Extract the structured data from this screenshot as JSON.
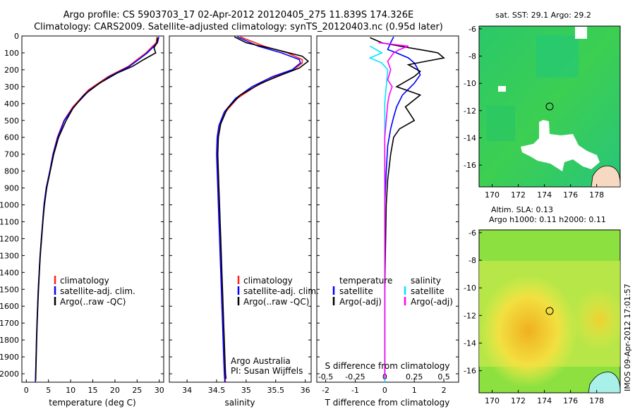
{
  "header": {
    "line1": "Argo profile: CS 5903703_17 02-Apr-2012 20120405_275 11.839S 174.326E",
    "line2": "Climatology: CARS2009. Satellite-adjusted climatology: synTS_20120403.nc (0.95d later)"
  },
  "credit": {
    "line1": "Argo Australia",
    "line2": "PI: Susan Wijffels"
  },
  "timestamp": "IMOS 09-Apr-2012 17:01:57",
  "colors": {
    "climatology": "#ff2020",
    "satellite": "#0000ff",
    "argo": "#000000",
    "sat_salinity": "#00e5ff",
    "argo_salinity": "#ff00ff"
  },
  "chart_data": [
    {
      "type": "line",
      "xlabel": "temperature (deg C)",
      "xlim": [
        -1,
        31
      ],
      "xticks": [
        "0",
        "5",
        "10",
        "15",
        "20",
        "25",
        "30"
      ],
      "ylim": [
        2050,
        0
      ],
      "yticks": [
        "0",
        "100",
        "200",
        "300",
        "400",
        "500",
        "600",
        "700",
        "800",
        "900",
        "1000",
        "1100",
        "1200",
        "1300",
        "1400",
        "1500",
        "1600",
        "1700",
        "1800",
        "1900",
        "2000"
      ],
      "legend": [
        "climatology",
        "satellite-adj. clim.",
        "Argo(..raw -QC)"
      ],
      "series": [
        {
          "name": "climatology",
          "color": "#ff2020",
          "points": [
            [
              29.5,
              5
            ],
            [
              29.3,
              40
            ],
            [
              27,
              100
            ],
            [
              23,
              180
            ],
            [
              18.5,
              240
            ],
            [
              14,
              320
            ],
            [
              10.5,
              420
            ],
            [
              8.5,
              500
            ],
            [
              7,
              600
            ],
            [
              6,
              700
            ],
            [
              5.3,
              800
            ],
            [
              4.5,
              900
            ],
            [
              4,
              1000
            ],
            [
              3.7,
              1100
            ],
            [
              3.4,
              1200
            ],
            [
              3.1,
              1300
            ],
            [
              2.9,
              1400
            ],
            [
              2.7,
              1500
            ],
            [
              2.55,
              1600
            ],
            [
              2.4,
              1700
            ],
            [
              2.3,
              1800
            ],
            [
              2.2,
              1900
            ],
            [
              2.1,
              2000
            ],
            [
              2.05,
              2050
            ]
          ]
        },
        {
          "name": "satellite-adj. clim.",
          "color": "#0000ff",
          "points": [
            [
              29.9,
              5
            ],
            [
              29.6,
              40
            ],
            [
              27.3,
              100
            ],
            [
              23.3,
              180
            ],
            [
              18.8,
              240
            ],
            [
              14.3,
              320
            ],
            [
              10.7,
              420
            ],
            [
              8.6,
              500
            ],
            [
              7.1,
              600
            ],
            [
              6.05,
              700
            ],
            [
              5.3,
              800
            ],
            [
              4.5,
              900
            ],
            [
              4,
              1000
            ],
            [
              3.7,
              1100
            ],
            [
              3.4,
              1200
            ],
            [
              3.1,
              1300
            ],
            [
              2.9,
              1400
            ],
            [
              2.7,
              1500
            ],
            [
              2.55,
              1600
            ],
            [
              2.4,
              1700
            ],
            [
              2.3,
              1800
            ],
            [
              2.2,
              1900
            ],
            [
              2.1,
              2000
            ],
            [
              2.05,
              2050
            ]
          ]
        },
        {
          "name": "Argo(..raw -QC)",
          "color": "#000000",
          "points": [
            [
              29.6,
              10
            ],
            [
              29.5,
              40
            ],
            [
              28.8,
              70
            ],
            [
              29.2,
              100
            ],
            [
              26.5,
              140
            ],
            [
              24,
              180
            ],
            [
              20.5,
              220
            ],
            [
              16.5,
              280
            ],
            [
              13,
              350
            ],
            [
              10.5,
              430
            ],
            [
              9,
              500
            ],
            [
              7.3,
              600
            ],
            [
              6.2,
              700
            ],
            [
              5.4,
              800
            ],
            [
              4.6,
              900
            ],
            [
              4.1,
              1000
            ],
            [
              3.75,
              1100
            ],
            [
              3.45,
              1200
            ],
            [
              3.15,
              1300
            ],
            [
              2.95,
              1400
            ],
            [
              2.75,
              1500
            ],
            [
              2.6,
              1600
            ],
            [
              2.45,
              1700
            ],
            [
              2.35,
              1800
            ],
            [
              2.25,
              1900
            ],
            [
              2.15,
              2000
            ],
            [
              2.1,
              2040
            ]
          ]
        }
      ]
    },
    {
      "type": "line",
      "xlabel": "salinity",
      "xlim": [
        33.7,
        36.1
      ],
      "xticks": [
        "34",
        "34.5",
        "35",
        "35.5",
        "36"
      ],
      "ylim": [
        2050,
        0
      ],
      "legend": [
        "climatology",
        "satellite-adj. clim.",
        "Argo(..raw -QC)"
      ],
      "series": [
        {
          "name": "climatology",
          "color": "#ff2020",
          "points": [
            [
              34.9,
              5
            ],
            [
              35.3,
              60
            ],
            [
              35.7,
              100
            ],
            [
              35.95,
              140
            ],
            [
              35.95,
              160
            ],
            [
              35.8,
              200
            ],
            [
              35.5,
              240
            ],
            [
              35.15,
              300
            ],
            [
              34.85,
              370
            ],
            [
              34.65,
              450
            ],
            [
              34.55,
              530
            ],
            [
              34.52,
              600
            ],
            [
              34.51,
              700
            ],
            [
              34.52,
              800
            ],
            [
              34.53,
              900
            ],
            [
              34.54,
              1000
            ],
            [
              34.55,
              1100
            ],
            [
              34.56,
              1200
            ],
            [
              34.57,
              1300
            ],
            [
              34.58,
              1400
            ],
            [
              34.59,
              1500
            ],
            [
              34.6,
              1600
            ],
            [
              34.61,
              1700
            ],
            [
              34.62,
              1800
            ],
            [
              34.63,
              1900
            ],
            [
              34.64,
              2000
            ],
            [
              34.65,
              2050
            ]
          ]
        },
        {
          "name": "satellite-adj. clim.",
          "color": "#0000ff",
          "points": [
            [
              34.85,
              5
            ],
            [
              35.2,
              60
            ],
            [
              35.6,
              100
            ],
            [
              35.9,
              140
            ],
            [
              35.92,
              160
            ],
            [
              35.78,
              200
            ],
            [
              35.45,
              240
            ],
            [
              35.1,
              300
            ],
            [
              34.82,
              370
            ],
            [
              34.63,
              450
            ],
            [
              34.54,
              530
            ],
            [
              34.51,
              600
            ],
            [
              34.5,
              700
            ],
            [
              34.51,
              800
            ],
            [
              34.52,
              900
            ],
            [
              34.53,
              1000
            ],
            [
              34.54,
              1100
            ],
            [
              34.55,
              1200
            ],
            [
              34.56,
              1300
            ],
            [
              34.57,
              1400
            ],
            [
              34.58,
              1500
            ],
            [
              34.59,
              1600
            ],
            [
              34.6,
              1700
            ],
            [
              34.61,
              1800
            ],
            [
              34.62,
              1900
            ],
            [
              34.63,
              2000
            ],
            [
              34.64,
              2050
            ]
          ]
        },
        {
          "name": "Argo(..raw -QC)",
          "color": "#000000",
          "points": [
            [
              34.8,
              5
            ],
            [
              35.0,
              40
            ],
            [
              35.5,
              80
            ],
            [
              35.95,
              120
            ],
            [
              36.05,
              150
            ],
            [
              35.9,
              190
            ],
            [
              35.6,
              230
            ],
            [
              35.25,
              280
            ],
            [
              34.9,
              350
            ],
            [
              34.68,
              430
            ],
            [
              34.57,
              520
            ],
            [
              34.53,
              600
            ],
            [
              34.52,
              700
            ],
            [
              34.53,
              800
            ],
            [
              34.54,
              900
            ],
            [
              34.55,
              1000
            ],
            [
              34.56,
              1100
            ],
            [
              34.57,
              1200
            ],
            [
              34.58,
              1300
            ],
            [
              34.59,
              1400
            ],
            [
              34.6,
              1500
            ],
            [
              34.61,
              1600
            ],
            [
              34.62,
              1700
            ],
            [
              34.63,
              1800
            ],
            [
              34.64,
              1900
            ],
            [
              34.65,
              2000
            ],
            [
              34.66,
              2030
            ]
          ]
        }
      ]
    },
    {
      "type": "line",
      "xlabel": "T difference from climatology",
      "xlabel_top": "S difference from climatology",
      "xlim": [
        -2.3,
        2.5
      ],
      "xticks": [
        "-2",
        "-1",
        "0",
        "1",
        "2"
      ],
      "xticks_top": [
        "-0.5",
        "-0.25",
        "0",
        "0.25",
        "0.5"
      ],
      "ylim": [
        2050,
        0
      ],
      "legend_temperature": {
        "title": "temperature",
        "items": [
          "satellite",
          "Argo(-adj)"
        ]
      },
      "legend_salinity": {
        "title": "salinity",
        "items": [
          "satellite",
          "Argo(-adj)"
        ]
      },
      "series": [
        {
          "name": "T satellite",
          "color": "#0000ff",
          "points": [
            [
              0.3,
              5
            ],
            [
              0.2,
              40
            ],
            [
              0.1,
              80
            ],
            [
              0.4,
              100
            ],
            [
              0.8,
              130
            ],
            [
              1.0,
              160
            ],
            [
              1.1,
              190
            ],
            [
              1.2,
              230
            ],
            [
              1.0,
              280
            ],
            [
              0.6,
              350
            ],
            [
              0.4,
              420
            ],
            [
              0.3,
              480
            ],
            [
              0.2,
              550
            ],
            [
              0.1,
              650
            ],
            [
              0.05,
              800
            ],
            [
              0,
              1000
            ],
            [
              0,
              1500
            ],
            [
              0,
              2050
            ]
          ]
        },
        {
          "name": "T Argo(-adj)",
          "color": "#000000",
          "points": [
            [
              -0.5,
              10
            ],
            [
              -0.1,
              40
            ],
            [
              0.5,
              60
            ],
            [
              1.5,
              90
            ],
            [
              1.8,
              100
            ],
            [
              2.0,
              130
            ],
            [
              1.4,
              150
            ],
            [
              0.8,
              170
            ],
            [
              1.2,
              210
            ],
            [
              1.0,
              240
            ],
            [
              0.4,
              300
            ],
            [
              1.2,
              350
            ],
            [
              0.7,
              420
            ],
            [
              1.0,
              500
            ],
            [
              0.5,
              550
            ],
            [
              0.3,
              600
            ],
            [
              0.2,
              700
            ],
            [
              0.1,
              850
            ],
            [
              0.05,
              1000
            ],
            [
              0,
              1500
            ],
            [
              0,
              2030
            ]
          ]
        },
        {
          "name": "S satellite",
          "color": "#00e5ff",
          "points": [
            [
              -0.5,
              60
            ],
            [
              -0.3,
              80
            ],
            [
              -0.1,
              100
            ],
            [
              -0.5,
              130
            ],
            [
              -0.1,
              160
            ],
            [
              0.1,
              200
            ],
            [
              0.05,
              300
            ],
            [
              0,
              400
            ],
            [
              0,
              600
            ],
            [
              0,
              1000
            ],
            [
              0,
              2050
            ]
          ]
        },
        {
          "name": "S Argo(-adj)",
          "color": "#ff00ff",
          "points": [
            [
              -0.2,
              40
            ],
            [
              0.8,
              60
            ],
            [
              0.5,
              80
            ],
            [
              0.3,
              100
            ],
            [
              0.1,
              150
            ],
            [
              0.2,
              200
            ],
            [
              0.1,
              260
            ],
            [
              0.25,
              300
            ],
            [
              0.15,
              350
            ],
            [
              0.1,
              400
            ],
            [
              0.05,
              500
            ],
            [
              0,
              600
            ],
            [
              0,
              1000
            ],
            [
              0,
              2030
            ]
          ]
        }
      ]
    },
    {
      "type": "heatmap",
      "title": "sat. SST: 29.1  Argo: 29.2",
      "xticks": [
        "170",
        "172",
        "174",
        "176",
        "178"
      ],
      "yticks": [
        "-6",
        "-8",
        "-10",
        "-12",
        "-14",
        "-16"
      ],
      "xlim": [
        169,
        179.8
      ],
      "ylim": [
        -17.6,
        -5.8
      ],
      "marker": [
        174.326,
        -11.839
      ]
    },
    {
      "type": "heatmap",
      "title": "Altim. SLA: 0.13",
      "subtitle": "Argo h1000: 0.11  h2000: 0.11",
      "xticks": [
        "170",
        "172",
        "174",
        "176",
        "178"
      ],
      "yticks": [
        "-6",
        "-8",
        "-10",
        "-12",
        "-14",
        "-16"
      ],
      "xlim": [
        169,
        179.8
      ],
      "ylim": [
        -17.6,
        -5.8
      ],
      "marker": [
        174.326,
        -11.839
      ]
    }
  ]
}
